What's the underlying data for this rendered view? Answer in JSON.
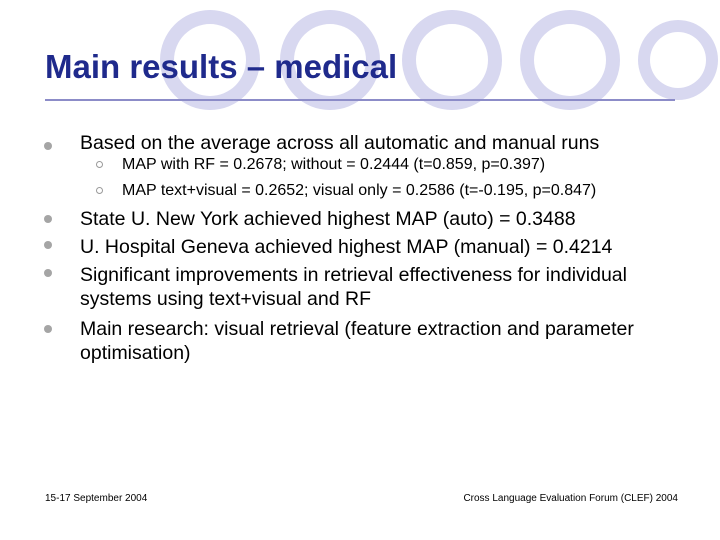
{
  "slide": {
    "title": "Main results – medical",
    "bullets": [
      {
        "text": "Based on the average across all automatic and manual runs",
        "subbullets": [
          "MAP with RF = 0.2678; without = 0.2444 (t=0.859, p=0.397)",
          "MAP text+visual = 0.2652; visual only = 0.2586 (t=-0.195, p=0.847)"
        ]
      },
      {
        "text": "State U. New York achieved highest MAP (auto) = 0.3488"
      },
      {
        "text": "U. Hospital Geneva achieved highest MAP (manual) = 0.4214"
      },
      {
        "text_lines": [
          "Significant improvements in retrieval effectiveness for individual",
          "systems using text+visual and RF"
        ]
      },
      {
        "text_lines": [
          "Main research: visual retrieval (feature extraction and parameter",
          "optimisation)"
        ]
      }
    ],
    "footer": {
      "left": "15-17 September 2004",
      "right": "Cross Language Evaluation Forum (CLEF) 2004"
    },
    "colors": {
      "title": "#1f2a8c",
      "decoration_circles": "#d8d8f0",
      "bullet": "#a5a5a5"
    }
  }
}
